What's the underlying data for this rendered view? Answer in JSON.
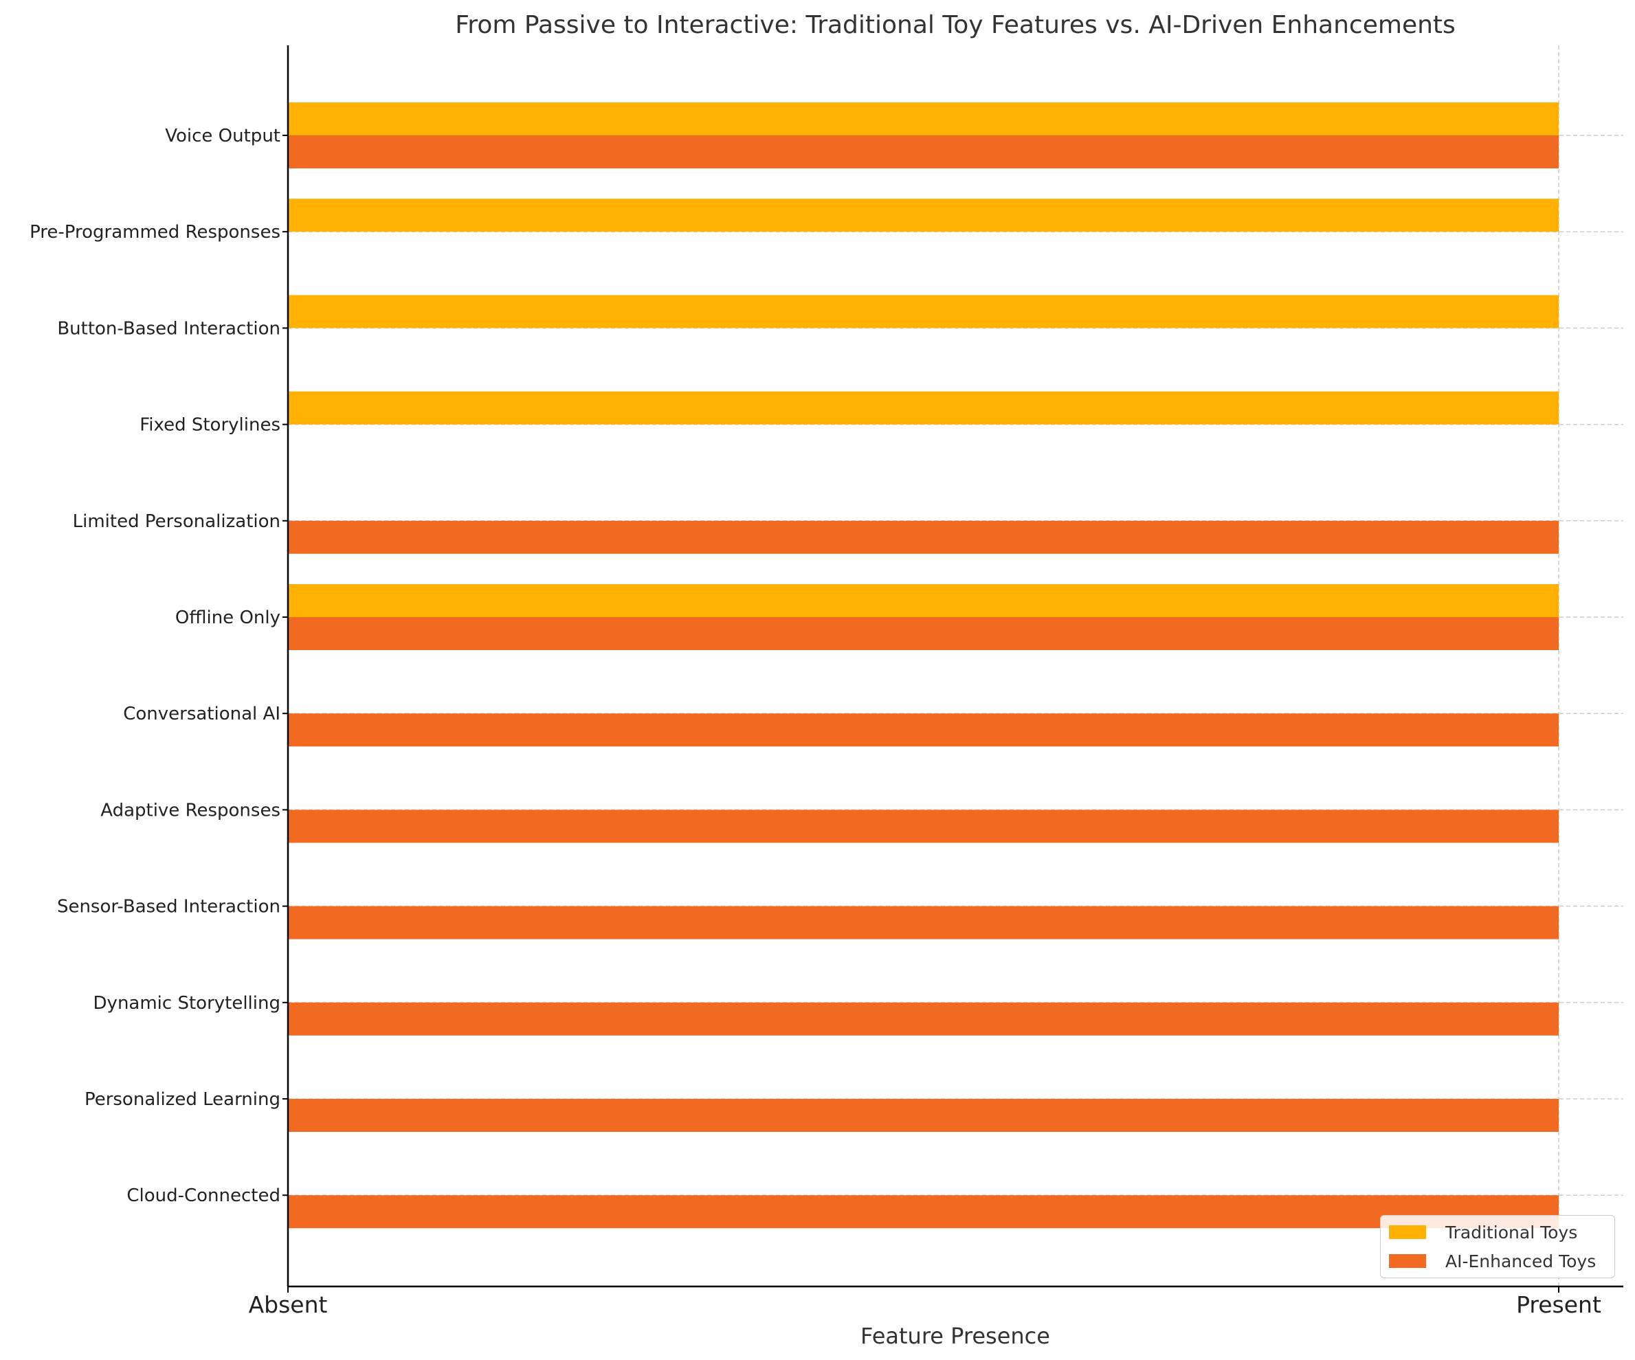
{
  "chart_data": {
    "type": "bar",
    "orientation": "horizontal",
    "title": "From Passive to Interactive: Traditional Toy Features vs. AI-Driven Enhancements",
    "xlabel": "Feature Presence",
    "ylabel": "",
    "xlim": [
      0,
      1
    ],
    "x_tick_labels": [
      "Absent",
      "Present"
    ],
    "x_tick_values": [
      0,
      1
    ],
    "categories": [
      "Voice Output",
      "Pre-Programmed Responses",
      "Button-Based Interaction",
      "Fixed Storylines",
      "Limited Personalization",
      "Offline Only",
      "Conversational AI",
      "Adaptive Responses",
      "Sensor-Based Interaction",
      "Dynamic Storytelling",
      "Personalized Learning",
      "Cloud-Connected"
    ],
    "series": [
      {
        "name": "Traditional Toys",
        "color": "#FFB000",
        "values": [
          1,
          1,
          1,
          1,
          0,
          1,
          0,
          0,
          0,
          0,
          0,
          0
        ]
      },
      {
        "name": "AI-Enhanced Toys",
        "color": "#F26A22",
        "values": [
          1,
          0,
          0,
          0,
          1,
          1,
          1,
          1,
          1,
          1,
          1,
          1
        ]
      }
    ],
    "grid": "dashed",
    "legend_position": "lower-right"
  }
}
